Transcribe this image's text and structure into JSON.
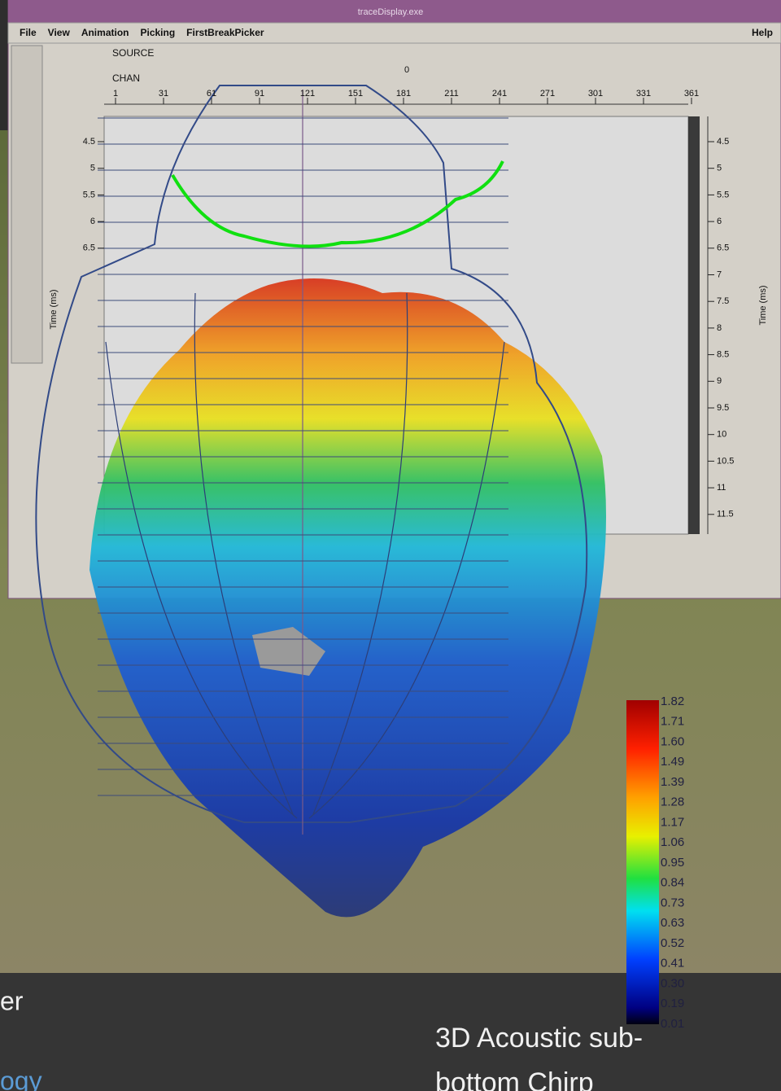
{
  "window": {
    "title": "traceDisplay.exe",
    "menus": [
      "File",
      "View",
      "Animation",
      "Picking",
      "FirstBreakPicker"
    ],
    "help": "Help"
  },
  "plot": {
    "source_label": "SOURCE",
    "source_value": "0",
    "chan_label": "CHAN",
    "chan_ticks": [
      1,
      31,
      61,
      91,
      121,
      151,
      181,
      211,
      241,
      271,
      301,
      331,
      361
    ],
    "left_time_ticks": [
      4.5,
      5,
      5.5,
      6,
      6.5
    ],
    "right_time_ticks": [
      4.5,
      5,
      5.5,
      6,
      6.5,
      7,
      7.5,
      8,
      8.5,
      9,
      9.5,
      10,
      10.5,
      11,
      11.5
    ],
    "left_axis_label": "Time (ms)",
    "right_axis_label": "Time (ms)"
  },
  "colorbar": {
    "labels": [
      "1.82",
      "1.71",
      "1.60",
      "1.49",
      "1.39",
      "1.28",
      "1.17",
      "1.06",
      "0.95",
      "0.84",
      "0.73",
      "0.63",
      "0.52",
      "0.41",
      "0.30",
      "0.19",
      "0.01"
    ]
  },
  "slide": {
    "left_text_top": "er",
    "left_text_bottom": "ogy",
    "caption_line1": "3D Acoustic sub-",
    "caption_line2": "bottom Chirp"
  }
}
